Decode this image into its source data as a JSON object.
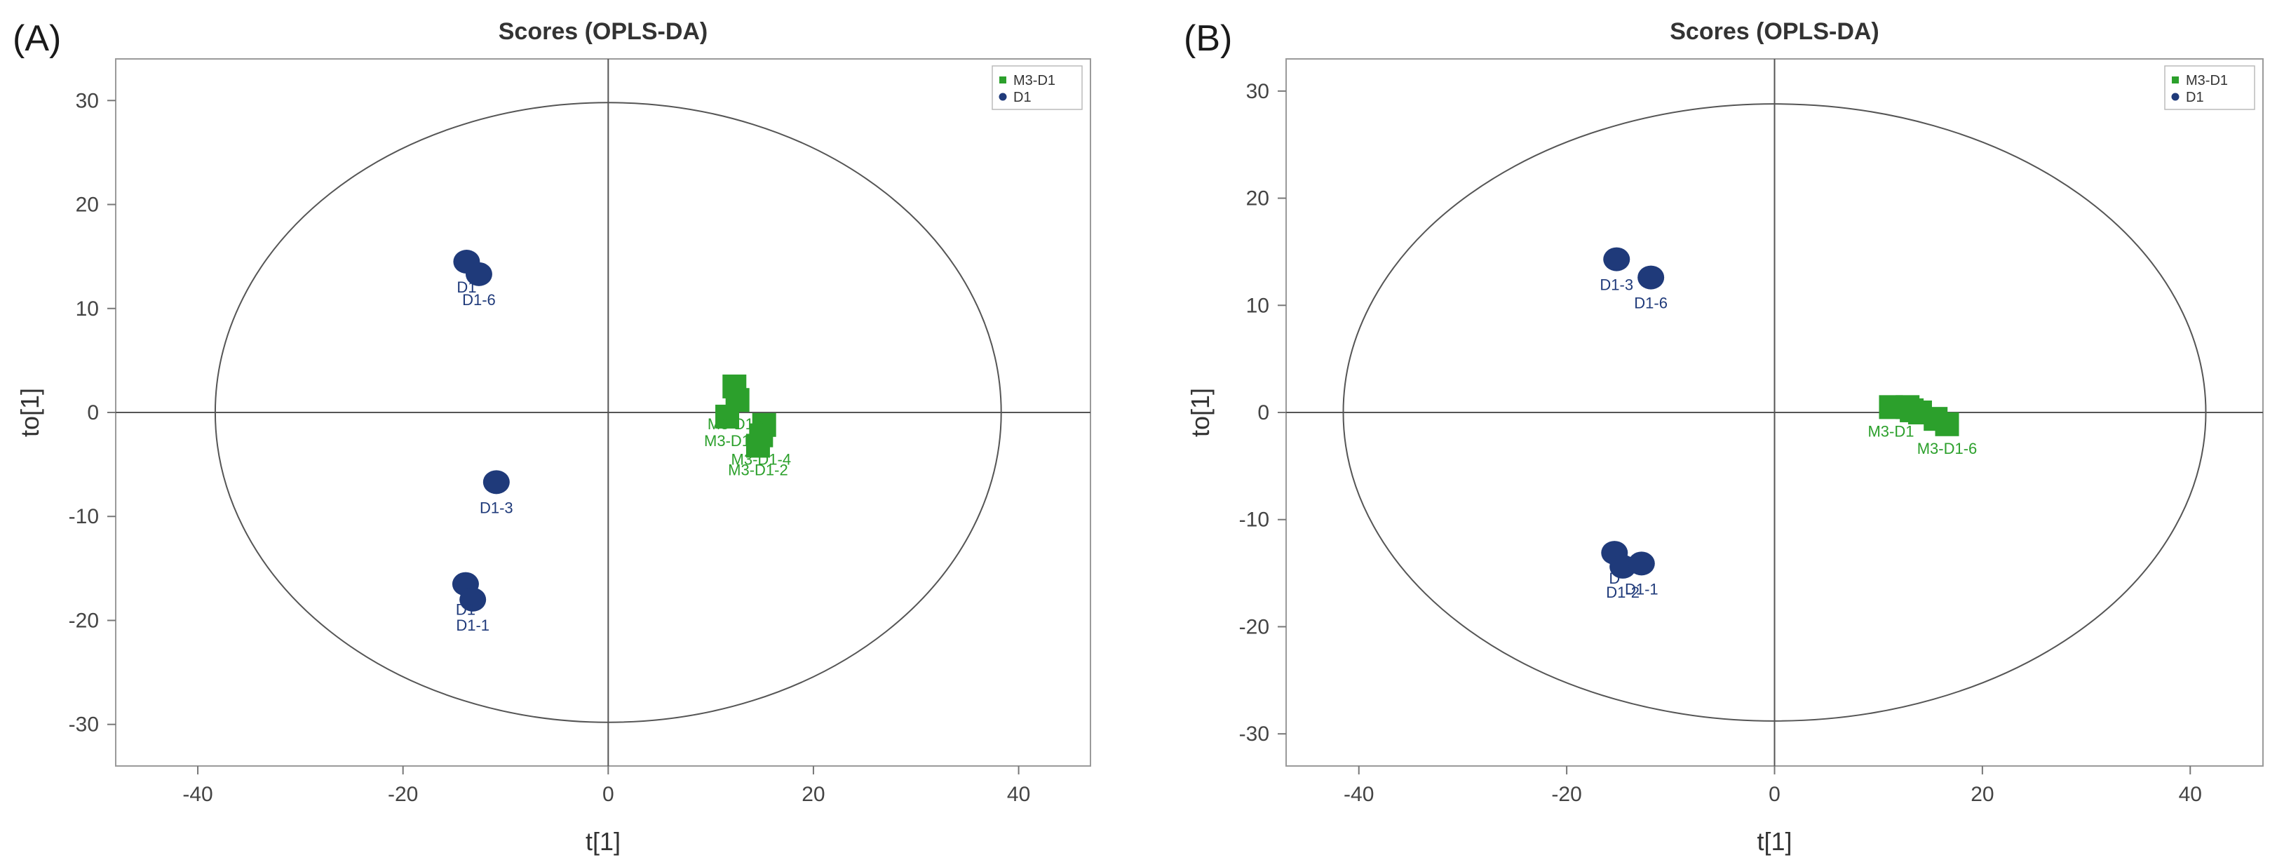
{
  "chart_data": [
    {
      "panel": "(A)",
      "type": "scatter",
      "title": "Scores (OPLS-DA)",
      "xlabel": "t[1]",
      "ylabel": "to[1]",
      "xlim": [
        -48,
        47
      ],
      "ylim": [
        -34,
        34
      ],
      "xticks": [
        -40,
        -20,
        0,
        20,
        40
      ],
      "yticks": [
        -30,
        -20,
        -10,
        0,
        10,
        20,
        30
      ],
      "ellipse": {
        "rx": 38.3,
        "ry": 29.8
      },
      "legend": {
        "position": "top-right",
        "entries": [
          "M3-D1",
          "D1"
        ]
      },
      "series": [
        {
          "name": "M3-D1",
          "marker": "square",
          "color": "#2ca02c",
          "points": [
            {
              "x": 12.3,
              "y": 2.5,
              "label": ""
            },
            {
              "x": 12.6,
              "y": 1.2,
              "label": "M3-D1-1"
            },
            {
              "x": 11.6,
              "y": -0.4,
              "label": "M3-D1"
            },
            {
              "x": 15.2,
              "y": -1.2,
              "label": ""
            },
            {
              "x": 14.9,
              "y": -2.2,
              "label": "M3-D1-4"
            },
            {
              "x": 14.6,
              "y": -3.2,
              "label": "M3-D1-2"
            }
          ]
        },
        {
          "name": "D1",
          "marker": "circle",
          "color": "#1f3a7a",
          "points": [
            {
              "x": -13.8,
              "y": 14.5,
              "label": "D1"
            },
            {
              "x": -12.6,
              "y": 13.3,
              "label": "D1-6"
            },
            {
              "x": -10.9,
              "y": -6.7,
              "label": "D1-3"
            },
            {
              "x": -13.9,
              "y": -16.5,
              "label": "D1"
            },
            {
              "x": -13.2,
              "y": -18.0,
              "label": "D1-1"
            }
          ]
        }
      ]
    },
    {
      "panel": "(B)",
      "type": "scatter",
      "title": "Scores (OPLS-DA)",
      "xlabel": "t[1]",
      "ylabel": "to[1]",
      "xlim": [
        -47,
        47
      ],
      "ylim": [
        -33,
        33
      ],
      "xticks": [
        -40,
        -20,
        0,
        20,
        40
      ],
      "yticks": [
        -30,
        -20,
        -10,
        0,
        10,
        20,
        30
      ],
      "ellipse": {
        "rx": 41.5,
        "ry": 28.8
      },
      "legend": {
        "position": "top-right",
        "entries": [
          "M3-D1",
          "D1"
        ]
      },
      "series": [
        {
          "name": "M3-D1",
          "marker": "square",
          "color": "#2ca02c",
          "points": [
            {
              "x": 11.2,
              "y": 0.5,
              "label": "M3-D1"
            },
            {
              "x": 12.8,
              "y": 0.5,
              "label": ""
            },
            {
              "x": 14.0,
              "y": 0.0,
              "label": ""
            },
            {
              "x": 15.5,
              "y": -0.6,
              "label": ""
            },
            {
              "x": 16.6,
              "y": -1.1,
              "label": "M3-D1-6"
            },
            {
              "x": 13.2,
              "y": 0.2,
              "label": ""
            }
          ]
        },
        {
          "name": "D1",
          "marker": "circle",
          "color": "#1f3a7a",
          "points": [
            {
              "x": -15.2,
              "y": 14.3,
              "label": "D1-3"
            },
            {
              "x": -11.9,
              "y": 12.6,
              "label": "D1-6"
            },
            {
              "x": -15.4,
              "y": -13.1,
              "label": "D"
            },
            {
              "x": -14.6,
              "y": -14.4,
              "label": "D1-2"
            },
            {
              "x": -12.8,
              "y": -14.1,
              "label": "D1-1"
            }
          ]
        }
      ]
    }
  ]
}
